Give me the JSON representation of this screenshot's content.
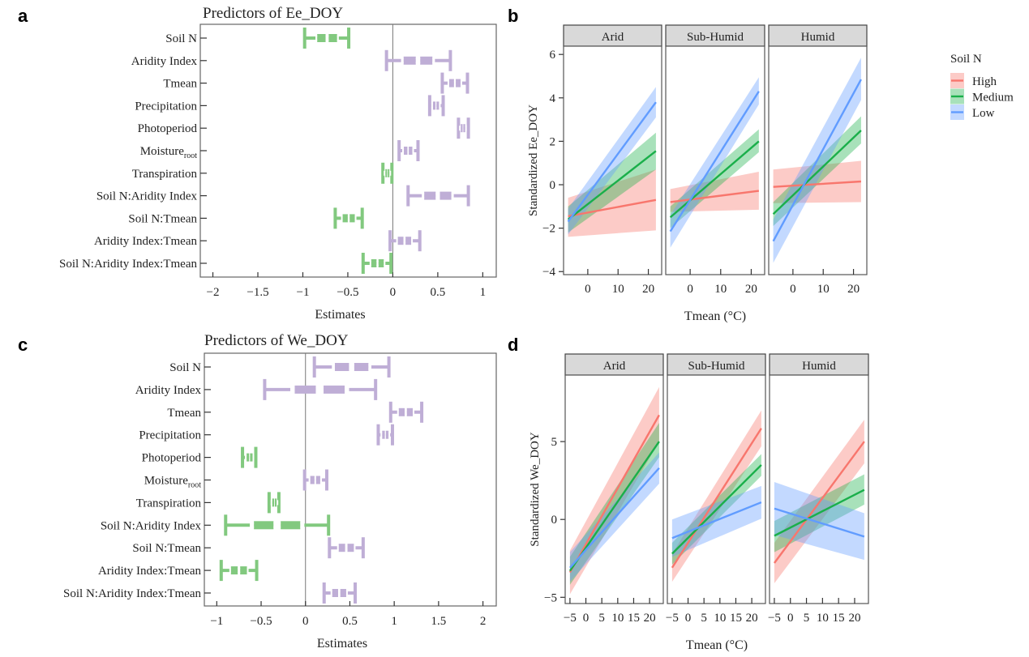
{
  "panel_letters": [
    "a",
    "b",
    "c",
    "d"
  ],
  "colors": {
    "negative": "#82c97f",
    "positive": "#bfaed6",
    "High": "#f8766d",
    "Medium": "#1aaf4a",
    "Low": "#619cff",
    "strip": "#d9d9d9"
  },
  "chart_data": [
    {
      "type": "forest",
      "title": "Predictors of Ee_DOY",
      "xlabel": "Estimates",
      "xlim": [
        -2.14,
        1.15
      ],
      "xticks": [
        -2,
        -1.5,
        -1,
        -0.5,
        0,
        0.5,
        1
      ],
      "xtick_labels": [
        "−2",
        "−1.5",
        "−1",
        "−0.5",
        "0",
        "0.5",
        "1"
      ],
      "rows": [
        {
          "label": "Soil N",
          "lo": -0.98,
          "est": -0.73,
          "hi": -0.49
        },
        {
          "label": "Aridity Index",
          "lo": -0.07,
          "est": 0.28,
          "hi": 0.64
        },
        {
          "label": "Tmean",
          "lo": 0.55,
          "est": 0.69,
          "hi": 0.83
        },
        {
          "label": "Precipitation",
          "lo": 0.41,
          "est": 0.48,
          "hi": 0.56
        },
        {
          "label": "Photoperiod",
          "lo": 0.73,
          "est": 0.78,
          "hi": 0.84
        },
        {
          "label": "Moisture",
          "sub": "root",
          "lo": 0.07,
          "est": 0.17,
          "hi": 0.28
        },
        {
          "label": "Transpiration",
          "lo": -0.11,
          "est": -0.06,
          "hi": -0.01
        },
        {
          "label": "Soil N:Aridity Index",
          "lo": 0.17,
          "est": 0.5,
          "hi": 0.84
        },
        {
          "label": "Soil N:Tmean",
          "lo": -0.64,
          "est": -0.49,
          "hi": -0.34
        },
        {
          "label": "Aridity Index:Tmean",
          "lo": -0.03,
          "est": 0.13,
          "hi": 0.3
        },
        {
          "label": "Soil N:Aridity Index:Tmean",
          "lo": -0.33,
          "est": -0.17,
          "hi": -0.02
        }
      ]
    },
    {
      "type": "line",
      "ylabel": "Standardized Ee_DOY",
      "xlabel": "Tmean (°C)",
      "xlim": [
        -8,
        24.4
      ],
      "ylim": [
        -4.14,
        6.38
      ],
      "xticks": [
        0,
        10,
        20
      ],
      "yticks": [
        -4,
        -2,
        0,
        2,
        4,
        6
      ],
      "ytick_labels": [
        "−4",
        "−2",
        "0",
        "2",
        "4",
        "6"
      ],
      "legend": {
        "title": "Soil N",
        "entries": [
          "High",
          "Medium",
          "Low"
        ],
        "position": "right"
      },
      "x": [
        -6.5,
        22.5
      ],
      "facets": [
        {
          "name": "Arid",
          "series": [
            {
              "name": "High",
              "y": [
                -1.45,
                -0.7
              ],
              "lo": [
                -2.4,
                -2.1
              ],
              "hi": [
                -0.6,
                0.7
              ]
            },
            {
              "name": "Medium",
              "y": [
                -1.6,
                1.55
              ],
              "lo": [
                -2.2,
                0.7
              ],
              "hi": [
                -1.0,
                2.4
              ]
            },
            {
              "name": "Low",
              "y": [
                -1.7,
                3.8
              ],
              "lo": [
                -2.3,
                3.1
              ],
              "hi": [
                -1.1,
                4.5
              ]
            }
          ]
        },
        {
          "name": "Sub-Humid",
          "series": [
            {
              "name": "High",
              "y": [
                -0.8,
                -0.28
              ],
              "lo": [
                -1.25,
                -1.15
              ],
              "hi": [
                -0.2,
                0.6
              ]
            },
            {
              "name": "Medium",
              "y": [
                -1.5,
                2.0
              ],
              "lo": [
                -2.0,
                1.5
              ],
              "hi": [
                -1.0,
                2.55
              ]
            },
            {
              "name": "Low",
              "y": [
                -2.15,
                4.3
              ],
              "lo": [
                -2.9,
                3.7
              ],
              "hi": [
                -1.4,
                4.95
              ]
            }
          ]
        },
        {
          "name": "Humid",
          "series": [
            {
              "name": "High",
              "y": [
                -0.1,
                0.15
              ],
              "lo": [
                -0.85,
                -0.8
              ],
              "hi": [
                0.7,
                1.1
              ]
            },
            {
              "name": "Medium",
              "y": [
                -1.35,
                2.5
              ],
              "lo": [
                -1.9,
                1.9
              ],
              "hi": [
                -0.8,
                3.15
              ]
            },
            {
              "name": "Low",
              "y": [
                -2.6,
                4.85
              ],
              "lo": [
                -3.6,
                3.9
              ],
              "hi": [
                -1.6,
                5.85
              ]
            }
          ]
        }
      ]
    },
    {
      "type": "forest",
      "title": "Predictors of We_DOY",
      "xlabel": "Estimates",
      "xlim": [
        -1.14,
        2.15
      ],
      "xticks": [
        -1,
        -0.5,
        0,
        0.5,
        1,
        1.5,
        2
      ],
      "xtick_labels": [
        "−1",
        "−0.5",
        "0",
        "0.5",
        "1",
        "1.5",
        "2"
      ],
      "rows": [
        {
          "label": "Soil N",
          "lo": 0.1,
          "est": 0.52,
          "hi": 0.94
        },
        {
          "label": "Aridity Index",
          "lo": -0.46,
          "est": 0.16,
          "hi": 0.79
        },
        {
          "label": "Tmean",
          "lo": 0.96,
          "est": 1.13,
          "hi": 1.31
        },
        {
          "label": "Precipitation",
          "lo": 0.82,
          "est": 0.9,
          "hi": 0.98
        },
        {
          "label": "Photoperiod",
          "lo": -0.71,
          "est": -0.63,
          "hi": -0.56
        },
        {
          "label": "Moisture",
          "sub": "root",
          "lo": -0.01,
          "est": 0.11,
          "hi": 0.24
        },
        {
          "label": "Transpiration",
          "lo": -0.41,
          "est": -0.35,
          "hi": -0.3
        },
        {
          "label": "Soil N:Aridity Index",
          "lo": -0.9,
          "est": -0.32,
          "hi": 0.26
        },
        {
          "label": "Soil N:Tmean",
          "lo": 0.27,
          "est": 0.46,
          "hi": 0.65
        },
        {
          "label": "Aridity Index:Tmean",
          "lo": -0.95,
          "est": -0.75,
          "hi": -0.55
        },
        {
          "label": "Soil N:Aridity Index:Tmean",
          "lo": 0.21,
          "est": 0.38,
          "hi": 0.56
        }
      ]
    },
    {
      "type": "line",
      "ylabel": "Standardized We_DOY",
      "xlabel": "Tmean (°C)",
      "xlim": [
        -6.5,
        24.3
      ],
      "ylim": [
        -5.4,
        9.27
      ],
      "xticks": [
        -5,
        0,
        5,
        10,
        15,
        20
      ],
      "yticks": [
        -5,
        0,
        5
      ],
      "ytick_labels": [
        "−5",
        "0",
        "5"
      ],
      "x": [
        -5,
        23
      ],
      "facets": [
        {
          "name": "Arid",
          "series": [
            {
              "name": "High",
              "y": [
                -3.4,
                6.7
              ],
              "lo": [
                -4.8,
                5.0
              ],
              "hi": [
                -2.0,
                8.5
              ]
            },
            {
              "name": "Medium",
              "y": [
                -3.3,
                5.0
              ],
              "lo": [
                -4.2,
                4.0
              ],
              "hi": [
                -2.4,
                6.2
              ]
            },
            {
              "name": "Low",
              "y": [
                -3.1,
                3.3
              ],
              "lo": [
                -4.0,
                2.3
              ],
              "hi": [
                -2.1,
                4.3
              ]
            }
          ]
        },
        {
          "name": "Sub-Humid",
          "series": [
            {
              "name": "High",
              "y": [
                -3.1,
                5.85
              ],
              "lo": [
                -4.0,
                4.7
              ],
              "hi": [
                -2.2,
                7.0
              ]
            },
            {
              "name": "Medium",
              "y": [
                -2.2,
                3.5
              ],
              "lo": [
                -2.9,
                2.8
              ],
              "hi": [
                -1.5,
                4.2
              ]
            },
            {
              "name": "Low",
              "y": [
                -1.2,
                1.1
              ],
              "lo": [
                -2.4,
                0.05
              ],
              "hi": [
                0.0,
                2.15
              ]
            }
          ]
        },
        {
          "name": "Humid",
          "series": [
            {
              "name": "High",
              "y": [
                -2.8,
                5.0
              ],
              "lo": [
                -4.1,
                3.6
              ],
              "hi": [
                -1.5,
                6.4
              ]
            },
            {
              "name": "Medium",
              "y": [
                -1.05,
                1.9
              ],
              "lo": [
                -2.1,
                0.95
              ],
              "hi": [
                -0.1,
                2.9
              ]
            },
            {
              "name": "Low",
              "y": [
                0.7,
                -1.1
              ],
              "lo": [
                -1.0,
                -2.6
              ],
              "hi": [
                2.4,
                0.4
              ]
            }
          ]
        }
      ]
    }
  ]
}
